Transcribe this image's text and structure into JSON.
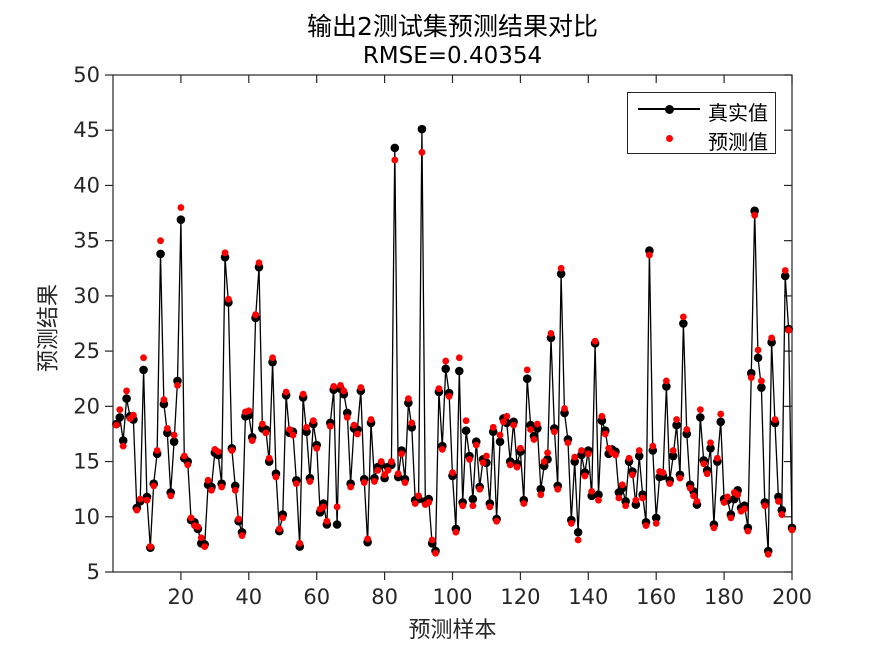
{
  "figure": {
    "title_line1": "输出2测试集预测结果对比",
    "title_line2": "RMSE=0.40354",
    "xlabel": "预测样本",
    "ylabel": "预测结果"
  },
  "legend": {
    "items": [
      {
        "label": "真实值",
        "color": "#000000",
        "style": "line-with-dot"
      },
      {
        "label": "预测值",
        "color": "#ff0000",
        "style": "dot"
      }
    ]
  },
  "colors": {
    "true_series": "#000000",
    "pred_series": "#ff0000",
    "axis": "#262626",
    "background": "#ffffff"
  },
  "chart_data": {
    "type": "line",
    "title": "输出2测试集预测结果对比",
    "subtitle": "RMSE=0.40354",
    "rmse": 0.40354,
    "xlabel": "预测样本",
    "ylabel": "预测结果",
    "x_start": 1,
    "n_points": 200,
    "xlim": [
      0,
      200
    ],
    "ylim": [
      5,
      50
    ],
    "x_ticks": [
      20,
      40,
      60,
      80,
      100,
      120,
      140,
      160,
      180,
      200
    ],
    "y_ticks": [
      5,
      10,
      15,
      20,
      25,
      30,
      35,
      40,
      45,
      50
    ],
    "grid": false,
    "legend_position": "top-right",
    "series": [
      {
        "name": "真实值",
        "color": "#000000",
        "marker": "filled-circle",
        "line": true,
        "values": [
          18.4,
          19.0,
          16.9,
          20.7,
          19.1,
          18.8,
          10.8,
          11.4,
          23.3,
          11.8,
          7.2,
          13.0,
          15.7,
          33.8,
          20.2,
          17.6,
          12.2,
          16.8,
          22.3,
          36.9,
          15.3,
          15.0,
          9.7,
          9.5,
          8.9,
          7.6,
          7.5,
          12.9,
          12.7,
          15.8,
          15.6,
          13.0,
          33.5,
          29.4,
          16.2,
          12.8,
          9.6,
          8.6,
          19.1,
          19.2,
          17.2,
          28.0,
          32.6,
          18.0,
          17.9,
          15.0,
          24.0,
          13.9,
          8.7,
          10.2,
          21.0,
          17.6,
          17.7,
          13.3,
          7.3,
          20.8,
          17.7,
          13.5,
          18.4,
          16.5,
          10.4,
          11.2,
          9.3,
          18.5,
          21.5,
          9.3,
          21.6,
          21.1,
          19.4,
          13.0,
          18.0,
          17.9,
          21.4,
          13.4,
          7.7,
          18.5,
          13.5,
          14.5,
          14.7,
          13.5,
          14.5,
          14.7,
          43.4,
          13.6,
          16.0,
          13.4,
          20.3,
          18.1,
          11.5,
          11.6,
          45.1,
          11.4,
          11.6,
          7.6,
          6.9,
          21.3,
          16.4,
          23.4,
          21.2,
          13.7,
          8.9,
          23.2,
          11.3,
          17.8,
          15.5,
          11.6,
          16.8,
          12.7,
          15.2,
          14.9,
          11.2,
          17.7,
          9.8,
          16.8,
          18.9,
          18.5,
          15.0,
          18.6,
          14.8,
          15.9,
          11.5,
          22.5,
          18.3,
          17.3,
          18.0,
          12.5,
          14.6,
          15.2,
          26.2,
          18.0,
          12.8,
          32.0,
          19.4,
          17.0,
          9.7,
          15.0,
          8.6,
          15.6,
          14.0,
          16.0,
          11.9,
          25.7,
          12.0,
          18.7,
          17.8,
          15.7,
          16.1,
          15.9,
          12.2,
          12.6,
          11.4,
          15.0,
          14.1,
          11.1,
          15.5,
          12.0,
          9.5,
          34.1,
          16.0,
          9.9,
          13.6,
          13.7,
          21.8,
          13.3,
          15.5,
          18.3,
          13.8,
          27.5,
          17.5,
          12.9,
          12.3,
          11.1,
          19.0,
          15.1,
          14.2,
          16.2,
          9.3,
          15.0,
          18.6,
          11.6,
          11.5,
          10.2,
          11.6,
          12.4,
          10.8,
          11.0,
          9.0,
          23.0,
          37.7,
          24.4,
          21.7,
          11.3,
          6.9,
          25.8,
          18.5,
          11.8,
          10.6,
          31.8,
          27.0,
          9.0
        ]
      },
      {
        "name": "预测值",
        "color": "#ff0000",
        "marker": "filled-circle",
        "line": false,
        "values": [
          18.3,
          19.7,
          16.4,
          21.4,
          18.9,
          19.2,
          10.6,
          11.6,
          24.4,
          11.5,
          7.3,
          12.8,
          16.0,
          35.0,
          20.6,
          18.0,
          11.9,
          17.4,
          21.9,
          38.0,
          15.5,
          14.7,
          9.9,
          9.2,
          9.1,
          8.1,
          7.3,
          13.3,
          12.4,
          16.1,
          15.9,
          12.7,
          33.9,
          29.7,
          16.0,
          12.4,
          9.8,
          8.3,
          19.5,
          19.6,
          16.9,
          28.3,
          33.0,
          18.4,
          17.6,
          15.3,
          24.4,
          13.6,
          8.9,
          9.9,
          21.3,
          17.9,
          17.4,
          13.0,
          7.6,
          21.1,
          18.1,
          13.2,
          18.7,
          16.2,
          10.7,
          10.9,
          9.6,
          18.2,
          21.8,
          10.9,
          21.9,
          21.4,
          19.0,
          12.7,
          18.3,
          17.5,
          21.7,
          13.1,
          8.0,
          18.8,
          13.2,
          14.2,
          15.0,
          13.8,
          14.2,
          15.0,
          42.3,
          13.9,
          15.7,
          13.1,
          20.7,
          18.5,
          11.2,
          11.9,
          43.0,
          11.1,
          11.3,
          7.9,
          6.7,
          21.6,
          16.1,
          24.1,
          20.9,
          14.0,
          8.6,
          24.4,
          11.0,
          18.7,
          15.2,
          11.0,
          16.5,
          12.5,
          14.9,
          15.5,
          10.9,
          18.1,
          9.6,
          17.4,
          18.6,
          19.1,
          14.7,
          18.3,
          14.5,
          16.2,
          11.2,
          23.3,
          17.9,
          17.0,
          18.4,
          12.0,
          15.0,
          15.8,
          26.6,
          17.7,
          12.5,
          32.5,
          19.8,
          16.7,
          9.4,
          15.4,
          7.9,
          16.0,
          13.7,
          15.7,
          12.3,
          25.9,
          11.5,
          19.1,
          17.5,
          16.2,
          15.8,
          15.6,
          11.7,
          12.9,
          11.0,
          15.3,
          13.8,
          11.5,
          16.0,
          11.7,
          9.2,
          33.7,
          16.4,
          9.4,
          14.1,
          14.0,
          22.3,
          13.0,
          16.0,
          18.8,
          13.5,
          28.1,
          17.9,
          12.6,
          11.9,
          11.4,
          19.7,
          14.8,
          13.9,
          16.7,
          9.0,
          15.3,
          19.3,
          11.3,
          11.8,
          9.9,
          12.2,
          12.0,
          10.5,
          10.7,
          8.7,
          22.6,
          37.3,
          25.1,
          22.3,
          11.0,
          6.6,
          26.2,
          18.8,
          11.4,
          10.2,
          32.3,
          26.9,
          8.8
        ]
      }
    ]
  }
}
